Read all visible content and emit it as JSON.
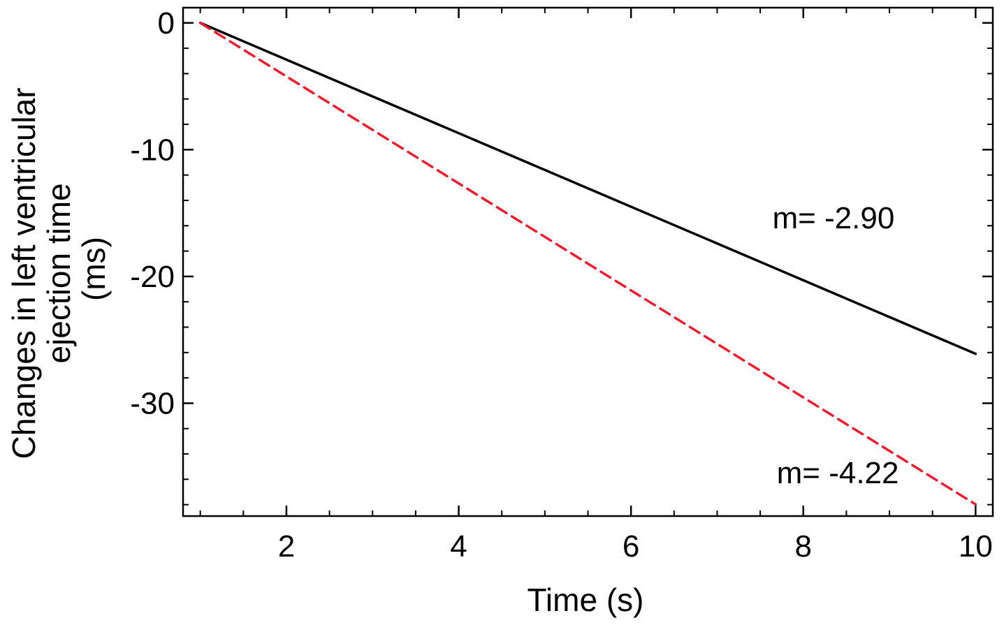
{
  "chart_data": {
    "type": "line",
    "title": "",
    "xlabel": "Time (s)",
    "ylabel_lines": [
      "Changes in left ventricular",
      "ejection time",
      "(ms)"
    ],
    "xlim": [
      0.8,
      10.2
    ],
    "ylim": [
      -38.9,
      1.2
    ],
    "xticks": [
      2,
      4,
      6,
      8,
      10
    ],
    "yticks": [
      0,
      -10,
      -20,
      -30
    ],
    "x_minor_step": 0.5,
    "y_minor_step": 2,
    "grid": false,
    "series": [
      {
        "x": [
          1,
          10
        ],
        "y": [
          0,
          -26.1
        ],
        "color": "#000000",
        "style": "solid"
      },
      {
        "x": [
          1,
          10
        ],
        "y": [
          0,
          -37.98
        ],
        "color": "#ee1c2e",
        "style": "dashed"
      }
    ],
    "annotations": [
      {
        "text": "m= -2.90",
        "x": 8.35,
        "y": -16.2
      },
      {
        "text": "m= -4.22",
        "x": 8.4,
        "y": -36.3
      }
    ]
  }
}
